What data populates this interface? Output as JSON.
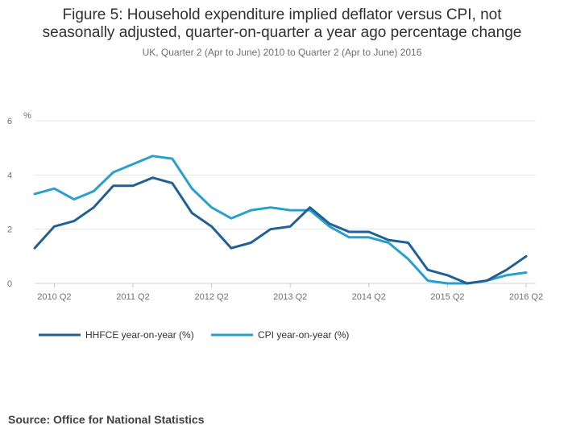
{
  "header": {
    "title_line1": "Figure 5: Household expenditure implied deflator versus CPI, not",
    "title_line2": "seasonally adjusted, quarter-on-quarter a year ago percentage change",
    "subtitle": "UK, Quarter 2 (Apr to June) 2010 to Quarter 2 (Apr to June) 2016"
  },
  "source": "Source: Office for National Statistics",
  "chart_data": {
    "type": "line",
    "title": "Figure 5: Household expenditure implied deflator versus CPI, not seasonally adjusted, quarter-on-quarter a year ago percentage change",
    "subtitle": "UK, Quarter 2 (Apr to June) 2010 to Quarter 2 (Apr to June) 2016",
    "ylabel": "%",
    "ylim": [
      0,
      6
    ],
    "yticks": [
      0,
      2,
      4,
      6
    ],
    "x": [
      "2010 Q1",
      "2010 Q2",
      "2010 Q3",
      "2010 Q4",
      "2011 Q1",
      "2011 Q2",
      "2011 Q3",
      "2011 Q4",
      "2012 Q1",
      "2012 Q2",
      "2012 Q3",
      "2012 Q4",
      "2013 Q1",
      "2013 Q2",
      "2013 Q3",
      "2013 Q4",
      "2014 Q1",
      "2014 Q2",
      "2014 Q3",
      "2014 Q4",
      "2015 Q1",
      "2015 Q2",
      "2015 Q3",
      "2015 Q4",
      "2016 Q1",
      "2016 Q2"
    ],
    "xtick_labels": [
      "2010 Q2",
      "2011 Q2",
      "2012 Q2",
      "2013 Q2",
      "2014 Q2",
      "2015 Q2",
      "2016 Q2"
    ],
    "xtick_indices": [
      1,
      5,
      9,
      13,
      17,
      21,
      25
    ],
    "grid": true,
    "legend_position": "bottom-left",
    "series": [
      {
        "name": "HHFCE year-on-year (%)",
        "color": "#206095",
        "values": [
          1.3,
          2.1,
          2.3,
          2.8,
          3.6,
          3.6,
          3.9,
          3.7,
          2.6,
          2.1,
          1.3,
          1.5,
          2.0,
          2.1,
          2.8,
          2.2,
          1.9,
          1.9,
          1.6,
          1.5,
          0.5,
          0.3,
          0.0,
          0.1,
          0.5,
          1.0
        ]
      },
      {
        "name": "CPI year-on-year (%)",
        "color": "#27a0cc",
        "values": [
          3.3,
          3.5,
          3.1,
          3.4,
          4.1,
          4.4,
          4.7,
          4.6,
          3.5,
          2.8,
          2.4,
          2.7,
          2.8,
          2.7,
          2.7,
          2.1,
          1.7,
          1.7,
          1.5,
          0.9,
          0.1,
          0.0,
          0.0,
          0.1,
          0.3,
          0.4
        ]
      }
    ]
  }
}
